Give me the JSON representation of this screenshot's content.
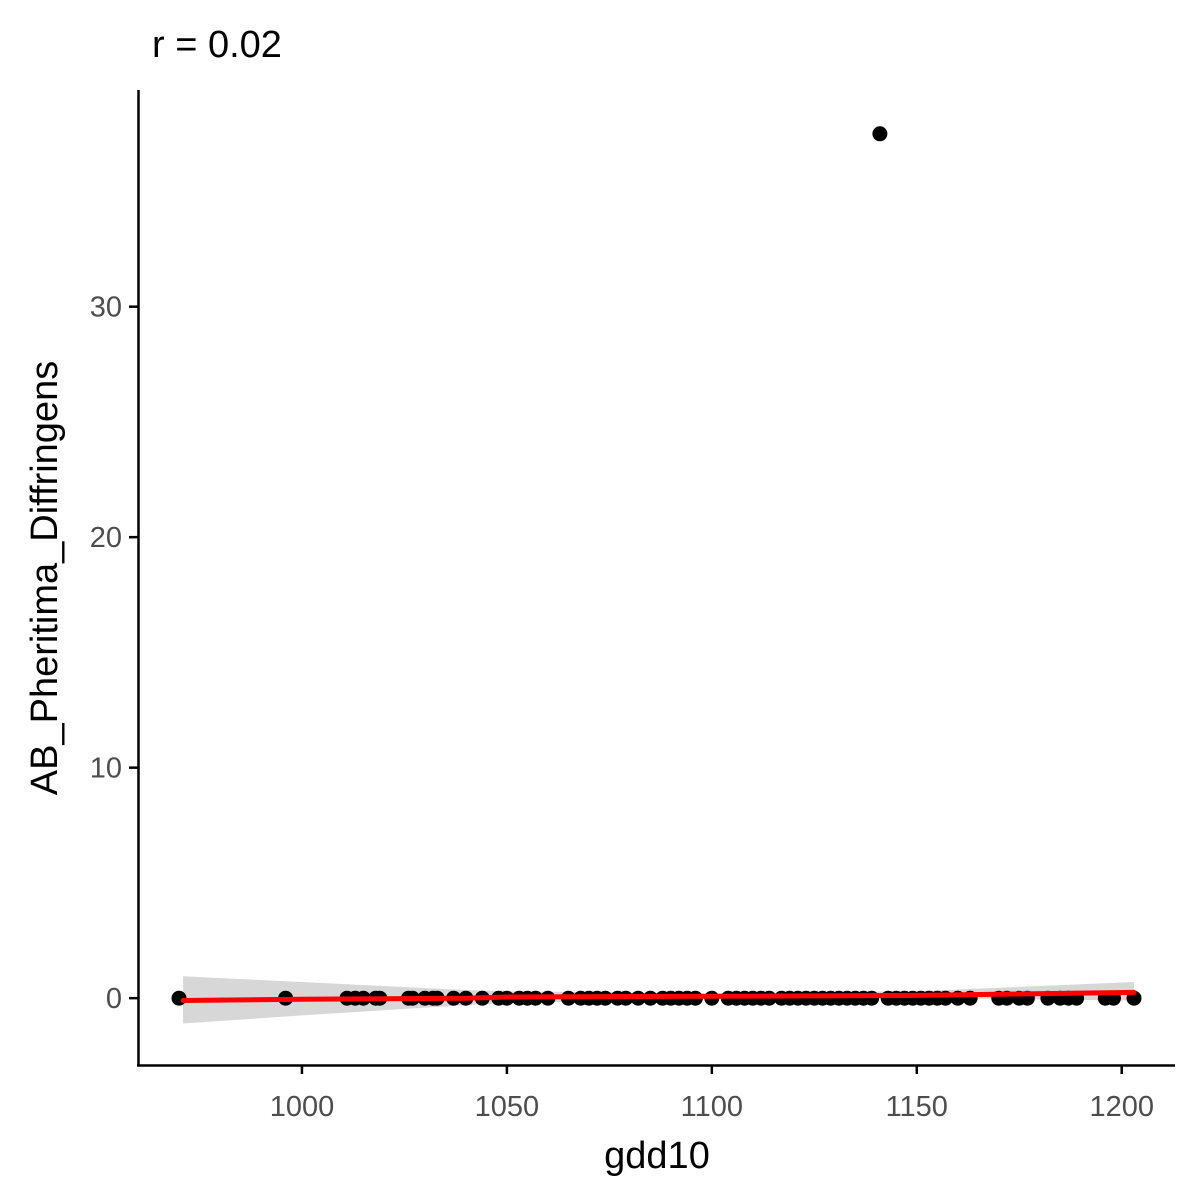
{
  "chart_data": {
    "type": "scatter",
    "title": "r = 0.02",
    "xlabel": "gdd10",
    "ylabel": "AB_Pheritima_Diffringens",
    "xlim": [
      960,
      1213
    ],
    "ylim": [
      -2.9,
      39.4
    ],
    "xticks": [
      1000,
      1050,
      1100,
      1150,
      1200
    ],
    "yticks": [
      0,
      10,
      20,
      30
    ],
    "grid": false,
    "legend": "none",
    "series": [
      {
        "points": [
          [
            970,
            0
          ],
          [
            996,
            0
          ],
          [
            1011,
            0
          ],
          [
            1013,
            0
          ],
          [
            1015,
            0
          ],
          [
            1018,
            0
          ],
          [
            1019,
            0
          ],
          [
            1026,
            0
          ],
          [
            1027,
            0
          ],
          [
            1030,
            0
          ],
          [
            1032,
            0
          ],
          [
            1033,
            0
          ],
          [
            1037,
            0
          ],
          [
            1040,
            0
          ],
          [
            1044,
            0
          ],
          [
            1048,
            0
          ],
          [
            1050,
            0
          ],
          [
            1053,
            0
          ],
          [
            1055,
            0
          ],
          [
            1057,
            0
          ],
          [
            1060,
            0
          ],
          [
            1065,
            0
          ],
          [
            1068,
            0
          ],
          [
            1070,
            0
          ],
          [
            1072,
            0
          ],
          [
            1074,
            0
          ],
          [
            1077,
            0
          ],
          [
            1079,
            0
          ],
          [
            1082,
            0
          ],
          [
            1085,
            0
          ],
          [
            1088,
            0
          ],
          [
            1090,
            0
          ],
          [
            1092,
            0
          ],
          [
            1094,
            0
          ],
          [
            1096,
            0
          ],
          [
            1100,
            0
          ],
          [
            1104,
            0
          ],
          [
            1106,
            0
          ],
          [
            1108,
            0
          ],
          [
            1110,
            0
          ],
          [
            1112,
            0
          ],
          [
            1114,
            0
          ],
          [
            1117,
            0
          ],
          [
            1119,
            0
          ],
          [
            1121,
            0
          ],
          [
            1123,
            0
          ],
          [
            1125,
            0
          ],
          [
            1127,
            0
          ],
          [
            1129,
            0
          ],
          [
            1131,
            0
          ],
          [
            1133,
            0
          ],
          [
            1135,
            0
          ],
          [
            1137,
            0
          ],
          [
            1139,
            0
          ],
          [
            1141,
            37.5
          ],
          [
            1143,
            0
          ],
          [
            1145,
            0
          ],
          [
            1147,
            0
          ],
          [
            1149,
            0
          ],
          [
            1151,
            0
          ],
          [
            1153,
            0
          ],
          [
            1155,
            0
          ],
          [
            1157,
            0
          ],
          [
            1160,
            0
          ],
          [
            1163,
            0
          ],
          [
            1170,
            0
          ],
          [
            1172,
            0
          ],
          [
            1175,
            0
          ],
          [
            1177,
            0
          ],
          [
            1182,
            0
          ],
          [
            1185,
            0
          ],
          [
            1187,
            0
          ],
          [
            1189,
            0
          ],
          [
            1196,
            0
          ],
          [
            1198,
            0
          ],
          [
            1203,
            0
          ]
        ],
        "color": "#000000"
      }
    ],
    "smooth": {
      "x": [
        971,
        1000,
        1040,
        1050,
        1100,
        1150,
        1203
      ],
      "y": [
        -0.1,
        -0.05,
        0.0,
        0.05,
        0.08,
        0.12,
        0.25
      ],
      "ci_lower": [
        -1.1,
        -0.75,
        -0.3,
        -0.2,
        -0.05,
        0.0,
        -0.1
      ],
      "ci_upper": [
        0.95,
        0.7,
        0.35,
        0.3,
        0.2,
        0.3,
        0.7
      ],
      "color": "#ff0000",
      "ci_color": "#d3d3d3"
    }
  }
}
